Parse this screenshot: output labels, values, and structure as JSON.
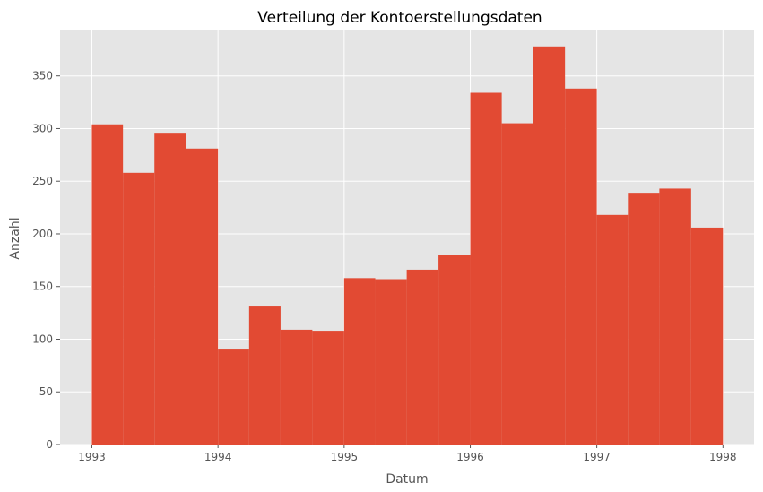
{
  "chart_data": {
    "type": "bar",
    "title": "Verteilung der Kontoerstellungsdaten",
    "xlabel": "Datum",
    "ylabel": "Anzahl",
    "x_ticks": [
      "1993",
      "1994",
      "1995",
      "1996",
      "1997",
      "1998"
    ],
    "y_ticks": [
      "0",
      "50",
      "100",
      "150",
      "200",
      "250",
      "300",
      "350"
    ],
    "xlim": [
      "1992-10-01",
      "1998-04-01"
    ],
    "ylim": [
      0,
      394
    ],
    "grid": true,
    "bin_edges": [
      "1993-01-01",
      "1993-04-01",
      "1993-07-01",
      "1993-10-01",
      "1994-01-01",
      "1994-04-01",
      "1994-07-01",
      "1994-10-01",
      "1995-01-01",
      "1995-04-01",
      "1995-07-01",
      "1995-10-01",
      "1996-01-01",
      "1996-04-01",
      "1996-07-01",
      "1996-10-01",
      "1997-01-01",
      "1997-04-01",
      "1997-07-01",
      "1997-10-01",
      "1998-01-01"
    ],
    "values": [
      304,
      258,
      296,
      281,
      91,
      131,
      109,
      108,
      158,
      157,
      166,
      180,
      334,
      305,
      378,
      338,
      218,
      239,
      243,
      206
    ],
    "colors": {
      "bar": "#E24A33",
      "background": "#E5E5E5",
      "grid": "#FFFFFF"
    }
  }
}
